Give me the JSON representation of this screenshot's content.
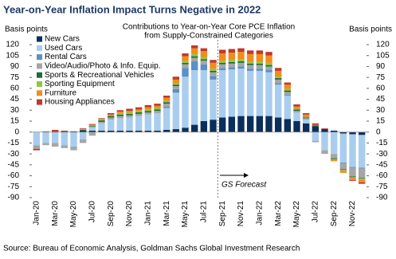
{
  "chart_data": {
    "type": "stacked-bar",
    "title": "Year-on-Year Inflation Impact Turns Negative in 2022",
    "subtitle": [
      "Contributions to Year-on-Year Core PCE Inflation",
      "from Supply-Constrained Categories"
    ],
    "y_label": "Basis points",
    "y2_label": "Basis points",
    "annotation": "GS Forecast",
    "source": "Source: Bureau of Economic Analysis, Goldman Sachs Global Investment Research",
    "categories": [
      "Jan-20",
      null,
      "Mar-20",
      null,
      "May-20",
      null,
      "Jul-20",
      null,
      "Sep-20",
      null,
      "Nov-20",
      null,
      "Jan-21",
      null,
      "Mar-21",
      null,
      "May-21",
      null,
      "Jul-21",
      null,
      "Sep-21",
      null,
      "Nov-21",
      null,
      "Jan-22",
      null,
      "Mar-22",
      null,
      "May-22",
      null,
      "Jul-22",
      null,
      "Sep-22",
      null,
      "Nov-22",
      null
    ],
    "ylim": [
      -90,
      120
    ],
    "yticks": [
      -90,
      -75,
      -60,
      -45,
      -30,
      -15,
      0,
      15,
      30,
      45,
      60,
      75,
      90,
      105,
      120
    ],
    "series": [
      {
        "name": "New Cars",
        "color": "#0b2f5b",
        "values": [
          0,
          0,
          0,
          1,
          1,
          2,
          2,
          2,
          2,
          2,
          2,
          2,
          2,
          2,
          3,
          4,
          6,
          10,
          15,
          17,
          20,
          21,
          22,
          22,
          22,
          22,
          20,
          18,
          15,
          12,
          8,
          4,
          2,
          -2,
          -3,
          -4
        ]
      },
      {
        "name": "Used Cars",
        "color": "#a9cdef",
        "values": [
          -18,
          -15,
          -15,
          -18,
          -20,
          -10,
          5,
          10,
          15,
          17,
          18,
          20,
          22,
          24,
          30,
          50,
          70,
          75,
          70,
          55,
          65,
          65,
          65,
          62,
          62,
          60,
          45,
          32,
          12,
          5,
          -12,
          -25,
          -30,
          -40,
          -45,
          -45
        ]
      },
      {
        "name": "Rental Cars",
        "color": "#5b8fc7",
        "values": [
          0,
          0,
          0,
          0,
          0,
          0,
          0,
          0,
          0,
          0,
          0,
          0,
          0,
          0,
          2,
          5,
          12,
          12,
          8,
          5,
          3,
          3,
          3,
          3,
          3,
          3,
          2,
          1,
          0,
          0,
          0,
          0,
          0,
          -1,
          -1,
          -1
        ]
      },
      {
        "name": "Video/Audio/Photo & Info. Equip.",
        "color": "#a6a6a6",
        "values": [
          -5,
          -3,
          -5,
          -4,
          -5,
          -5,
          -5,
          2,
          3,
          3,
          3,
          3,
          3,
          3,
          4,
          4,
          5,
          5,
          5,
          5,
          5,
          5,
          5,
          5,
          5,
          5,
          5,
          4,
          2,
          2,
          -2,
          -4,
          -6,
          -8,
          -12,
          -13
        ]
      },
      {
        "name": "Sports & Recreational Vehicles",
        "color": "#1e6b3a",
        "values": [
          0,
          0,
          0,
          0,
          0,
          1,
          1,
          2,
          2,
          2,
          2,
          2,
          2,
          2,
          2,
          2,
          2,
          2,
          2,
          2,
          2,
          2,
          2,
          2,
          2,
          2,
          2,
          2,
          2,
          1,
          1,
          0,
          -1,
          -1,
          -1,
          -1
        ]
      },
      {
        "name": "Sporting Equipment",
        "color": "#8fc640",
        "values": [
          0,
          0,
          0,
          0,
          0,
          1,
          1,
          1,
          1,
          2,
          2,
          2,
          2,
          2,
          2,
          2,
          3,
          3,
          3,
          3,
          3,
          3,
          3,
          3,
          3,
          3,
          2,
          2,
          1,
          1,
          0,
          0,
          -1,
          -1,
          -1,
          -1
        ]
      },
      {
        "name": "Furniture",
        "color": "#f28c1c",
        "values": [
          0,
          0,
          0,
          0,
          0,
          0,
          1,
          1,
          1,
          2,
          2,
          2,
          3,
          3,
          4,
          5,
          6,
          8,
          8,
          8,
          10,
          10,
          10,
          10,
          10,
          10,
          8,
          6,
          3,
          3,
          1,
          -1,
          -2,
          -3,
          -3,
          -4
        ]
      },
      {
        "name": "Housing Appliances",
        "color": "#c0392b",
        "values": [
          -2,
          1,
          3,
          1,
          0,
          1,
          1,
          1,
          2,
          2,
          3,
          3,
          3,
          3,
          3,
          4,
          4,
          4,
          4,
          4,
          5,
          5,
          5,
          5,
          5,
          5,
          4,
          3,
          3,
          2,
          2,
          1,
          0,
          0,
          -1,
          -2
        ]
      }
    ]
  }
}
